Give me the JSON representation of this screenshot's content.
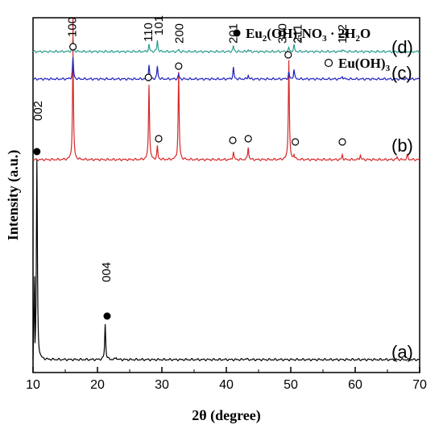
{
  "chart_data": {
    "type": "line",
    "xlabel": "2θ (degree)",
    "ylabel": "Intensity (a.u.)",
    "xlim": [
      10,
      70
    ],
    "xticks": [
      10,
      20,
      30,
      40,
      50,
      60,
      70
    ],
    "legend": [
      {
        "marker": "filled-circle",
        "label_main": "Eu",
        "label_sub1": "2",
        "label_mid": "(OH)",
        "label_sub2": "5",
        "label_mid2": "NO",
        "label_sub3": "3",
        "label_end": " · 2H",
        "label_sub4": "2",
        "label_tail": "O"
      },
      {
        "marker": "open-circle",
        "label_main": "Eu(OH)",
        "label_sub1": "3"
      }
    ],
    "series": [
      {
        "name": "(a)",
        "color": "#000000",
        "baseline": 0,
        "peaks": [
          [
            10.6,
            0.62
          ],
          [
            21.2,
            0.11
          ],
          [
            22.9,
            0.008
          ],
          [
            43.0,
            0.004
          ]
        ]
      },
      {
        "name": "(b)",
        "color": "#d62728",
        "baseline": 0.62,
        "peaks": [
          [
            16.2,
            0.33
          ],
          [
            28.0,
            0.235
          ],
          [
            29.3,
            0.04
          ],
          [
            32.6,
            0.27
          ],
          [
            41.1,
            0.025
          ],
          [
            43.4,
            0.04
          ],
          [
            49.7,
            0.31
          ],
          [
            50.5,
            0.015
          ],
          [
            58.0,
            0.015
          ],
          [
            60.8,
            0.015
          ],
          [
            68.1,
            0.015
          ],
          [
            66.5,
            0.008
          ]
        ]
      },
      {
        "name": "(c)",
        "color": "#1f1fbf",
        "baseline": 0.87,
        "peaks": [
          [
            16.2,
            0.065
          ],
          [
            28.0,
            0.045
          ],
          [
            29.3,
            0.04
          ],
          [
            32.6,
            0.015
          ],
          [
            41.1,
            0.035
          ],
          [
            43.4,
            0.012
          ],
          [
            49.7,
            0.02
          ],
          [
            50.5,
            0.03
          ],
          [
            58.0,
            0.01
          ]
        ]
      },
      {
        "name": "(d)",
        "color": "#2a9d8f",
        "baseline": 0.955,
        "peaks": [
          [
            16.2,
            0.04
          ],
          [
            28.0,
            0.022
          ],
          [
            29.3,
            0.035
          ],
          [
            32.6,
            0.006
          ],
          [
            41.1,
            0.018
          ],
          [
            43.4,
            0.006
          ],
          [
            49.7,
            0.012
          ],
          [
            50.5,
            0.02
          ],
          [
            58.0,
            0.008
          ]
        ]
      }
    ],
    "red_line_x": 16.2,
    "peak_labels": [
      {
        "text": "100",
        "x": 16.2,
        "y": 1.0
      },
      {
        "text": "110",
        "x": 28.0,
        "y": 0.985
      },
      {
        "text": "101",
        "x": 29.6,
        "y": 1.005
      },
      {
        "text": "200",
        "x": 32.8,
        "y": 0.98
      },
      {
        "text": "201",
        "x": 41.2,
        "y": 0.98
      },
      {
        "text": "300",
        "x": 48.8,
        "y": 0.98
      },
      {
        "text": "211",
        "x": 51.2,
        "y": 0.98
      },
      {
        "text": "112",
        "x": 58.1,
        "y": 0.98
      },
      {
        "text": "002",
        "x": 10.9,
        "y": 0.74
      },
      {
        "text": "004",
        "x": 21.5,
        "y": 0.24
      }
    ],
    "filled_markers": [
      {
        "x": 10.6,
        "y": 0.645
      },
      {
        "x": 21.5,
        "y": 0.135
      }
    ],
    "open_markers": [
      {
        "x": 16.2,
        "y": 0.97
      },
      {
        "x": 27.9,
        "y": 0.875
      },
      {
        "x": 29.5,
        "y": 0.685
      },
      {
        "x": 32.6,
        "y": 0.91
      },
      {
        "x": 41.0,
        "y": 0.68
      },
      {
        "x": 43.4,
        "y": 0.685
      },
      {
        "x": 49.6,
        "y": 0.945
      },
      {
        "x": 50.7,
        "y": 0.675
      },
      {
        "x": 58.0,
        "y": 0.675
      }
    ],
    "curve_labels": [
      {
        "text": "(a)",
        "y": 0.02
      },
      {
        "text": "(b)",
        "y": 0.66
      },
      {
        "text": "(c)",
        "y": 0.885
      },
      {
        "text": "(d)",
        "y": 0.965
      }
    ]
  }
}
